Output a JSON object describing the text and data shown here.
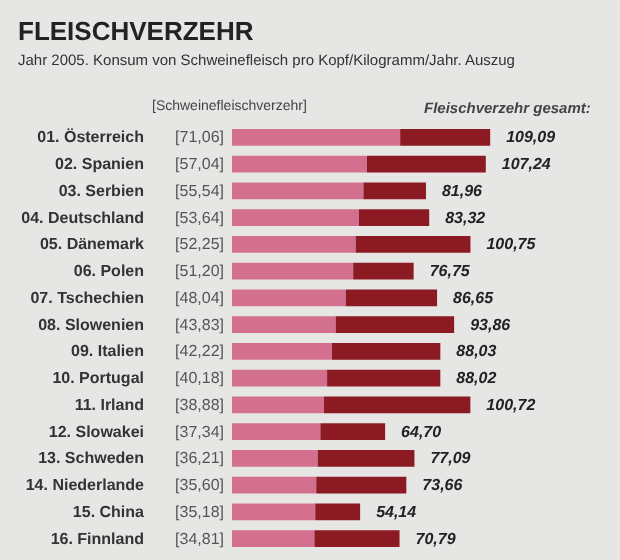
{
  "chart_data": {
    "type": "bar",
    "orientation": "horizontal",
    "stacked": true,
    "title": "FLEISCHVERZEHR",
    "subtitle": "Jahr 2005. Konsum von Schweinefleisch pro Kopf/Kilogramm/Jahr. Auszug",
    "categories": [
      "01. Österreich",
      "02. Spanien",
      "03. Serbien",
      "04. Deutschland",
      "05. Dänemark",
      "06. Polen",
      "07. Tschechien",
      "08. Slowenien",
      "09. Italien",
      "10. Portugal",
      "11. Irland",
      "12. Slowakei",
      "13. Schweden",
      "14. Niederlande",
      "15. China",
      "16. Finnland"
    ],
    "series": [
      {
        "color": "#d4708f",
        "values": [
          71.06,
          57.04,
          55.54,
          53.64,
          52.25,
          51.2,
          48.04,
          43.83,
          42.22,
          40.18,
          38.88,
          37.34,
          36.21,
          35.6,
          35.18,
          34.81
        ],
        "value_labels": [
          "[71,06]",
          "[57,04]",
          "[55,54]",
          "[53,64]",
          "[52,25]",
          "[51,20]",
          "[48,04]",
          "[43,83]",
          "[42,22]",
          "[40,18]",
          "[38,88]",
          "[37,34]",
          "[36,21]",
          "[35,60]",
          "[35,18]",
          "[34,81]"
        ]
      },
      {
        "color": "#8b1a22",
        "values": [
          38.03,
          50.2,
          26.42,
          29.68,
          48.5,
          25.55,
          38.61,
          50.03,
          45.81,
          47.84,
          61.84,
          27.36,
          40.88,
          38.06,
          18.96,
          35.98
        ]
      }
    ],
    "totals": [
      "109,09",
      "107,24",
      "81,96",
      "83,32",
      "100,75",
      "76,75",
      "86,65",
      "93,86",
      "88,03",
      "88,02",
      "100,72",
      "64,70",
      "77,09",
      "73,66",
      "54,14",
      "70,79"
    ],
    "annotations": [
      "[Schweinefleischverzehr]",
      "Fleischverzehr gesamt:"
    ]
  }
}
